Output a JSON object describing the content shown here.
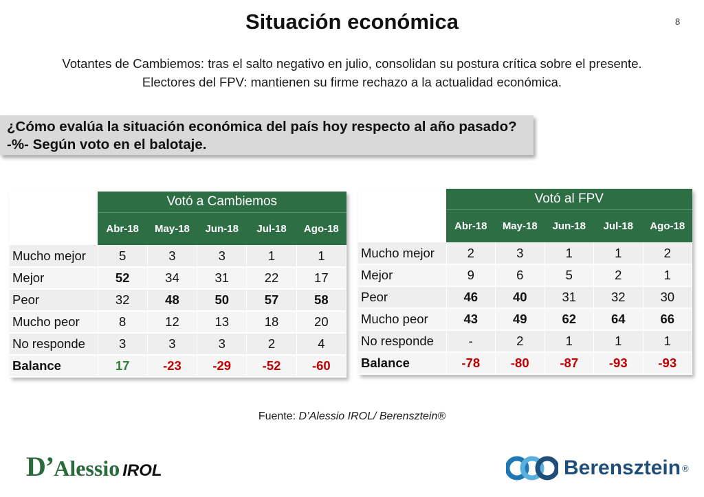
{
  "slide": {
    "title": "Situación económica",
    "page_number": "8",
    "subtitle_line1": "Votantes de Cambiemos: tras el salto negativo en julio, consolidan su postura crítica sobre el presente.",
    "subtitle_line2": "Electores del FPV: mantienen su firme rechazo a la actualidad económica.",
    "question_line1": "¿Cómo evalúa la situación económica del país hoy respecto al año pasado?",
    "question_line2": "-%- Según voto en el balotaje.",
    "source_prefix": "Fuente: ",
    "source_name": "D’Alessio IROL/ Berensztein®"
  },
  "tables": {
    "cambiemos": {
      "group_header": "Votó a Cambiemos",
      "months": [
        "Abr-18",
        "May-18",
        "Jun-18",
        "Jul-18",
        "Ago-18"
      ],
      "rows": [
        {
          "label": "Mucho mejor",
          "values": [
            "5",
            "3",
            "3",
            "1",
            "1"
          ]
        },
        {
          "label": "Mejor",
          "values": [
            "52",
            "34",
            "31",
            "22",
            "17"
          ]
        },
        {
          "label": "Peor",
          "values": [
            "32",
            "48",
            "50",
            "57",
            "58"
          ]
        },
        {
          "label": "Mucho peor",
          "values": [
            "8",
            "12",
            "13",
            "18",
            "20"
          ]
        },
        {
          "label": "No responde",
          "values": [
            "3",
            "3",
            "3",
            "2",
            "4"
          ]
        },
        {
          "label": "Balance",
          "values": [
            "17",
            "-23",
            "-29",
            "-52",
            "-60"
          ]
        }
      ]
    },
    "fpv": {
      "group_header": "Votó al FPV",
      "months": [
        "Abr-18",
        "May-18",
        "Jun-18",
        "Jul-18",
        "Ago-18"
      ],
      "rows": [
        {
          "label": "Mucho mejor",
          "values": [
            "2",
            "3",
            "1",
            "1",
            "2"
          ]
        },
        {
          "label": "Mejor",
          "values": [
            "9",
            "6",
            "5",
            "2",
            "1"
          ]
        },
        {
          "label": "Peor",
          "values": [
            "46",
            "40",
            "31",
            "32",
            "30"
          ]
        },
        {
          "label": "Mucho peor",
          "values": [
            "43",
            "49",
            "62",
            "64",
            "66"
          ]
        },
        {
          "label": "No responde",
          "values": [
            "-",
            "2",
            "1",
            "1",
            "1"
          ]
        },
        {
          "label": "Balance",
          "values": [
            "-78",
            "-80",
            "-87",
            "-93",
            "-93"
          ]
        }
      ]
    }
  },
  "logos": {
    "left_d": "D’",
    "left_alessio": "Alessio",
    "left_irol": "IROL",
    "right_name": "Berensztein",
    "right_reg": "®"
  },
  "colors": {
    "header_green": "#2e6e45",
    "negative_red": "#c00000",
    "positive_green": "#2e7d32",
    "question_bg": "#d9d9d9"
  }
}
